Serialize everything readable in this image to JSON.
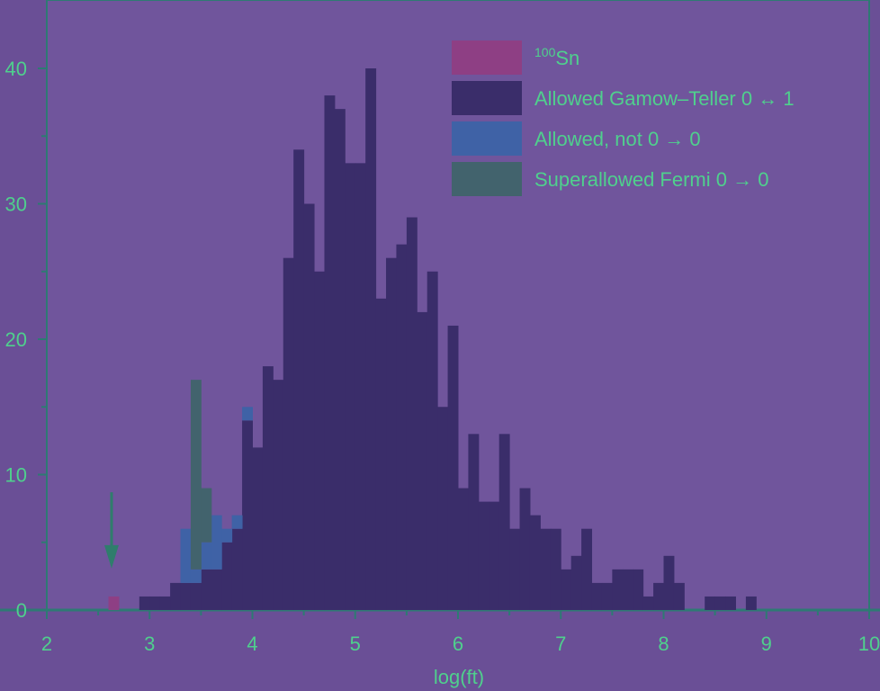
{
  "chart_data": {
    "type": "bar",
    "stacked": true,
    "xlabel": "log(ft)",
    "ylabel": "",
    "xlim": [
      2,
      10
    ],
    "ylim": [
      0,
      45
    ],
    "bin_width": 0.1,
    "x_ticks": [
      "2",
      "3",
      "4",
      "5",
      "6",
      "7",
      "8",
      "9",
      "10"
    ],
    "y_ticks": [
      "0",
      "10",
      "20",
      "30",
      "40"
    ],
    "grid": false,
    "legend_position": "top-right",
    "series": [
      {
        "name": "100Sn",
        "color": "#8e3f84",
        "points": [
          [
            2.6,
            1
          ]
        ]
      },
      {
        "name": "Allowed Gamow–Teller 0 ↔ 1",
        "color": "#3a2d6a",
        "points": [
          [
            2.9,
            1
          ],
          [
            3.0,
            1
          ],
          [
            3.1,
            1
          ],
          [
            3.2,
            2
          ],
          [
            3.3,
            2
          ],
          [
            3.4,
            2
          ],
          [
            3.5,
            3
          ],
          [
            3.6,
            3
          ],
          [
            3.7,
            5
          ],
          [
            3.8,
            6
          ],
          [
            3.9,
            14
          ],
          [
            4.0,
            12
          ],
          [
            4.1,
            18
          ],
          [
            4.2,
            17
          ],
          [
            4.3,
            26
          ],
          [
            4.4,
            34
          ],
          [
            4.5,
            30
          ],
          [
            4.6,
            25
          ],
          [
            4.7,
            38
          ],
          [
            4.8,
            37
          ],
          [
            4.9,
            33
          ],
          [
            5.0,
            33
          ],
          [
            5.1,
            40
          ],
          [
            5.2,
            23
          ],
          [
            5.3,
            26
          ],
          [
            5.4,
            27
          ],
          [
            5.5,
            29
          ],
          [
            5.6,
            22
          ],
          [
            5.7,
            25
          ],
          [
            5.8,
            15
          ],
          [
            5.9,
            21
          ],
          [
            6.0,
            9
          ],
          [
            6.1,
            13
          ],
          [
            6.2,
            8
          ],
          [
            6.3,
            8
          ],
          [
            6.4,
            13
          ],
          [
            6.5,
            6
          ],
          [
            6.6,
            9
          ],
          [
            6.7,
            7
          ],
          [
            6.8,
            6
          ],
          [
            6.9,
            6
          ],
          [
            7.0,
            3
          ],
          [
            7.1,
            4
          ],
          [
            7.2,
            6
          ],
          [
            7.3,
            2
          ],
          [
            7.4,
            2
          ],
          [
            7.5,
            3
          ],
          [
            7.6,
            3
          ],
          [
            7.7,
            3
          ],
          [
            7.8,
            1
          ],
          [
            7.9,
            2
          ],
          [
            8.0,
            4
          ],
          [
            8.1,
            2
          ],
          [
            8.2,
            0
          ],
          [
            8.3,
            0
          ],
          [
            8.4,
            1
          ],
          [
            8.5,
            1
          ],
          [
            8.6,
            1
          ],
          [
            8.7,
            0
          ],
          [
            8.8,
            1
          ]
        ]
      },
      {
        "name": "Allowed, not 0 → 0",
        "color": "#3f62a6",
        "points": [
          [
            3.3,
            4
          ],
          [
            3.4,
            1
          ],
          [
            3.5,
            2
          ],
          [
            3.6,
            4
          ],
          [
            3.7,
            1
          ],
          [
            3.8,
            1
          ],
          [
            3.9,
            1
          ]
        ]
      },
      {
        "name": "Superallowed Fermi 0 → 0",
        "color": "#42636d",
        "points": [
          [
            3.4,
            14
          ],
          [
            3.5,
            4
          ]
        ]
      }
    ],
    "annotations": [
      {
        "type": "arrow",
        "x": 2.63,
        "y_from": 8.7,
        "y_to": 3.2,
        "color": "#2f7d6c"
      }
    ]
  }
}
